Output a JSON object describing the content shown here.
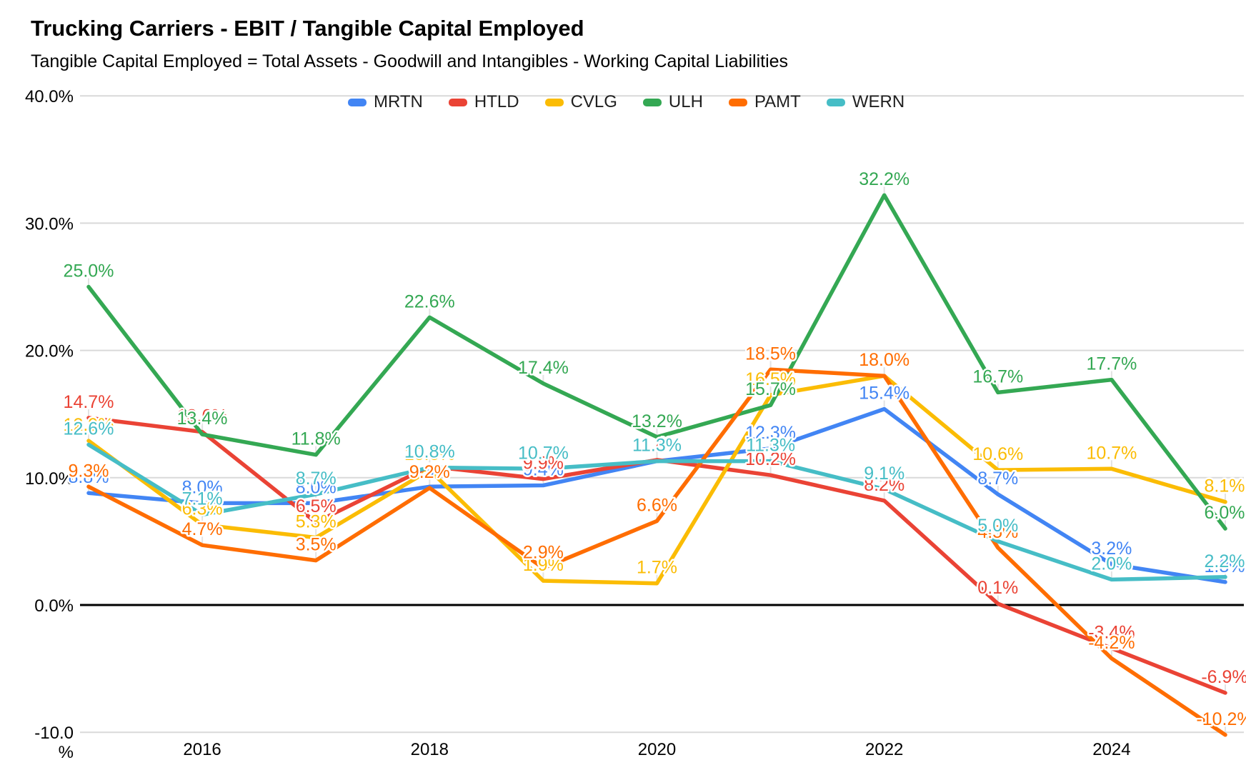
{
  "chart_data": {
    "type": "line",
    "title": "Trucking Carriers - EBIT / Tangible Capital Employed",
    "subtitle": "Tangible Capital Employed = Total Assets - Goodwill and Intangibles - Working Capital Liabilities",
    "x": [
      2015,
      2016,
      2017,
      2018,
      2019,
      2020,
      2021,
      2022,
      2023,
      2024,
      2025
    ],
    "x_tick_labels": [
      "2016",
      "2018",
      "2020",
      "2022",
      "2024"
    ],
    "y_ticks": [
      {
        "label": "40.0%",
        "value": 40
      },
      {
        "label": "30.0%",
        "value": 30
      },
      {
        "label": "20.0%",
        "value": 20
      },
      {
        "label": "10.0%",
        "value": 10
      },
      {
        "label": "0.0%",
        "value": 0
      },
      {
        "label": "-10.0",
        "label2": "%",
        "value": -10
      }
    ],
    "ylim": [
      -10,
      40
    ],
    "grid": "horizontal",
    "legend_position": "top",
    "value_suffix": "%",
    "series": [
      {
        "name": "MRTN",
        "color": "#4285F4",
        "values": [
          8.8,
          8.0,
          8.0,
          9.3,
          9.4,
          11.3,
          12.3,
          15.4,
          8.7,
          3.2,
          1.8
        ]
      },
      {
        "name": "HTLD",
        "color": "#EA4335",
        "values": [
          14.7,
          13.6,
          6.5,
          10.9,
          9.9,
          11.4,
          10.2,
          8.2,
          0.1,
          -3.4,
          -6.9
        ]
      },
      {
        "name": "CVLG",
        "color": "#FBBC04",
        "values": [
          12.9,
          6.3,
          5.3,
          10.6,
          1.9,
          1.7,
          16.5,
          18.0,
          10.6,
          10.7,
          8.1
        ]
      },
      {
        "name": "ULH",
        "color": "#34A853",
        "values": [
          25.0,
          13.4,
          11.8,
          22.6,
          17.4,
          13.2,
          15.7,
          32.2,
          16.7,
          17.7,
          6.0
        ]
      },
      {
        "name": "PAMT",
        "color": "#FF6D01",
        "values": [
          9.3,
          4.7,
          3.5,
          9.2,
          2.9,
          6.6,
          18.5,
          18.0,
          4.5,
          -4.2,
          -10.2
        ]
      },
      {
        "name": "WERN",
        "color": "#46BDC6",
        "values": [
          12.6,
          7.1,
          8.7,
          10.8,
          10.7,
          11.3,
          11.3,
          9.1,
          5.0,
          2.0,
          2.2
        ]
      }
    ]
  }
}
